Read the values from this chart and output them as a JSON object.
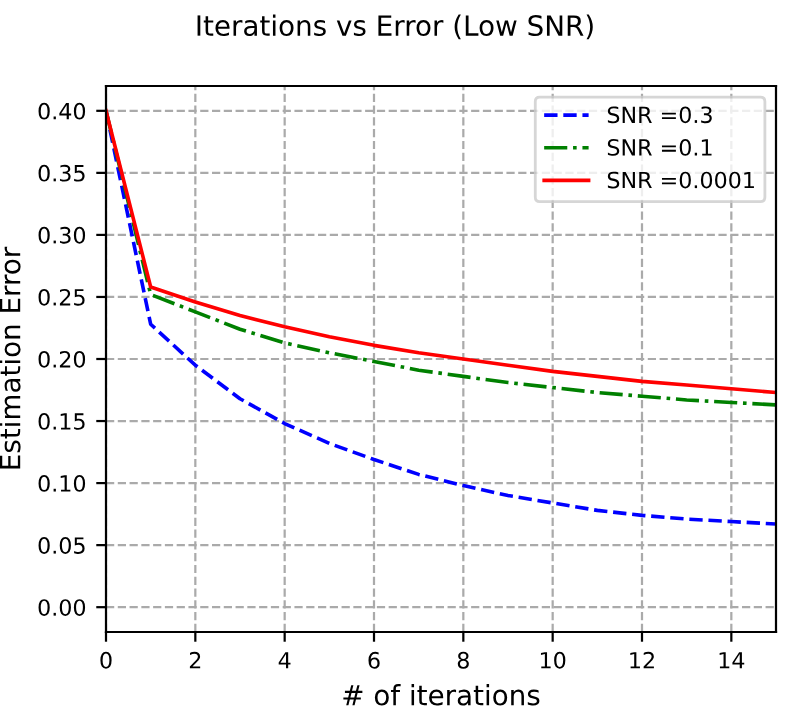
{
  "chart_data": {
    "type": "line",
    "title": "Iterations vs Error (Low SNR)",
    "xlabel": "# of iterations",
    "ylabel": "Estimation Error",
    "x": [
      0,
      1,
      2,
      3,
      4,
      5,
      6,
      7,
      8,
      9,
      10,
      11,
      12,
      13,
      14,
      15
    ],
    "series": [
      {
        "name": "SNR =0.3",
        "color": "#0000ff",
        "line_style": "dashed",
        "values": [
          0.4,
          0.228,
          0.195,
          0.168,
          0.148,
          0.132,
          0.119,
          0.107,
          0.098,
          0.09,
          0.084,
          0.078,
          0.074,
          0.071,
          0.069,
          0.067
        ]
      },
      {
        "name": "SNR =0.1",
        "color": "#008000",
        "line_style": "dashdot",
        "values": [
          0.4,
          0.252,
          0.238,
          0.224,
          0.213,
          0.205,
          0.198,
          0.191,
          0.186,
          0.181,
          0.177,
          0.173,
          0.17,
          0.167,
          0.165,
          0.163
        ]
      },
      {
        "name": "SNR =0.0001",
        "color": "#ff0000",
        "line_style": "solid",
        "values": [
          0.4,
          0.258,
          0.246,
          0.235,
          0.226,
          0.218,
          0.211,
          0.205,
          0.2,
          0.195,
          0.19,
          0.186,
          0.182,
          0.179,
          0.176,
          0.173
        ]
      }
    ],
    "xlim": [
      0,
      15
    ],
    "xticks": [
      0,
      2,
      4,
      6,
      8,
      10,
      12,
      14
    ],
    "ylim": [
      -0.02,
      0.42
    ],
    "yticks": [
      {
        "value": 0,
        "label": "0.00"
      },
      {
        "value": 0.05,
        "label": "0.05"
      },
      {
        "value": 0.1,
        "label": "0.10"
      },
      {
        "value": 0.15,
        "label": "0.15"
      },
      {
        "value": 0.2,
        "label": "0.20"
      },
      {
        "value": 0.25,
        "label": "0.25"
      },
      {
        "value": 0.3,
        "label": "0.30"
      },
      {
        "value": 0.35,
        "label": "0.35"
      },
      {
        "value": 0.4,
        "label": "0.40"
      }
    ],
    "grid": true,
    "legend": "top right",
    "marker": "none"
  }
}
